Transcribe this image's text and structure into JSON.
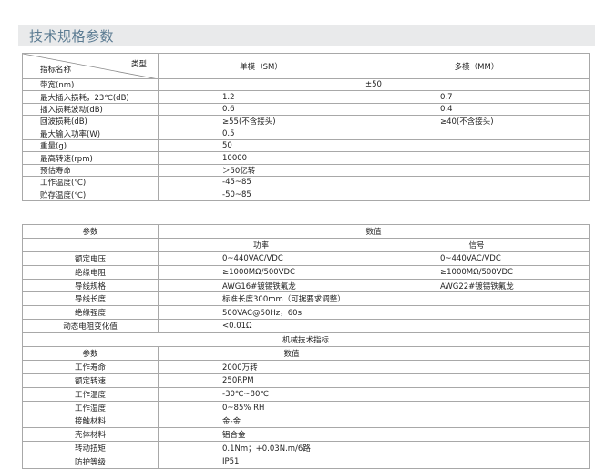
{
  "title": "技术规格参数",
  "spec_table": {
    "corner_top": "类型",
    "corner_bottom": "指标名称",
    "col_sm": "单模（SM）",
    "col_mm": "多模（MM）",
    "rows": [
      {
        "name": "带宽(nm)",
        "value": "±50"
      },
      {
        "name": "最大插入损耗，23℃(dB)",
        "sm": "1.2",
        "mm": "0.7"
      },
      {
        "name": "插入损耗波动(dB)",
        "sm": "0.6",
        "mm": "0.4"
      },
      {
        "name": "回波损耗(dB)",
        "sm": "≥55(不含接头)",
        "mm": "≥40(不含接头)"
      },
      {
        "name": "最大输入功率(W)",
        "value": "0.5"
      },
      {
        "name": "重量(g)",
        "value": "50"
      },
      {
        "name": "最高转速(rpm)",
        "value": "10000"
      },
      {
        "name": "预估寿命",
        "value": "＞50亿转"
      },
      {
        "name": "工作温度(℃)",
        "value": "-45~85"
      },
      {
        "name": "贮存温度(℃)",
        "value": "-50~85"
      }
    ]
  },
  "electrical_table": {
    "param_header": "参数",
    "value_header": "数值",
    "power_header": "功率",
    "signal_header": "信号",
    "rows": [
      {
        "name": "额定电压",
        "power": "0~440VAC/VDC",
        "signal": "0~440VAC/VDC"
      },
      {
        "name": "绝缘电阻",
        "power": "≥1000MΩ/500VDC",
        "signal": "≥1000MΩ/500VDC"
      },
      {
        "name": "导线规格",
        "power": "AWG16#镀锡铁氟龙",
        "signal": "AWG22#镀锡铁氟龙"
      },
      {
        "name": "导线长度",
        "value": "标准长度300mm（可据要求调整）"
      },
      {
        "name": "绝缘强度",
        "value": "500VAC@50Hz，60s"
      },
      {
        "name": "动态电阻变化值",
        "value": "<0.01Ω"
      }
    ],
    "mech_title": "机械技术指标",
    "mech_param_header": "参数",
    "mech_value_header": "数值",
    "mech_rows": [
      {
        "name": "工作寿命",
        "value": "2000万转"
      },
      {
        "name": "额定转速",
        "value": "250RPM"
      },
      {
        "name": "工作温度",
        "value": "-30℃~80℃"
      },
      {
        "name": "工作湿度",
        "value": "0~85% RH"
      },
      {
        "name": "接触材料",
        "value": "金-金"
      },
      {
        "name": "壳体材料",
        "value": "铝合金"
      },
      {
        "name": "转动扭矩",
        "value": "0.1Nm；+0.03N.m/6路"
      },
      {
        "name": "防护等级",
        "value": "IP51"
      }
    ]
  }
}
